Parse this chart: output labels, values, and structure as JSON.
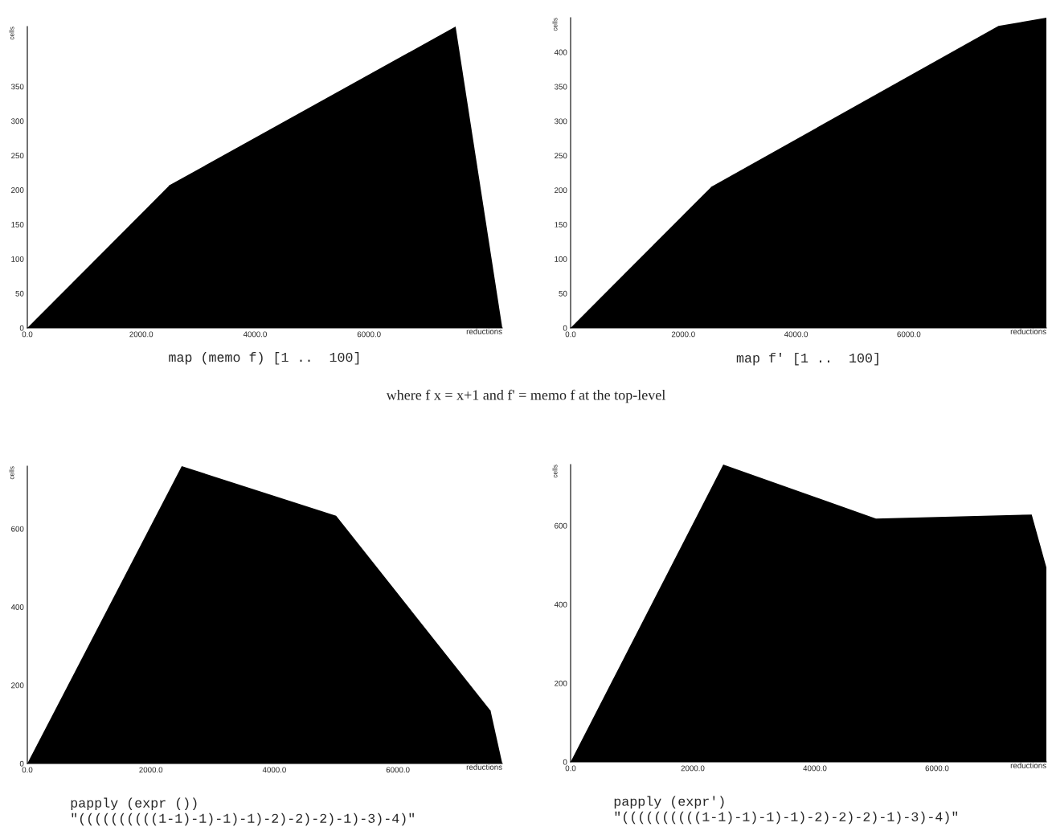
{
  "chart_data": [
    {
      "type": "area",
      "title": "map (memo f) [1 ..  100]",
      "xlabel": "reductions",
      "ylabel": "cells",
      "annotations": [
        "where f x = x+1 and f' = memo f at the top-level"
      ],
      "x": [
        0,
        2500,
        7520,
        8340
      ],
      "values": [
        0,
        207,
        437,
        0
      ],
      "color": "#000000",
      "xlim": [
        0,
        8340
      ],
      "ylim": [
        0,
        437
      ],
      "xticks": [
        {
          "value": 0,
          "label": "0.0"
        },
        {
          "value": 2000,
          "label": "2000.0"
        },
        {
          "value": 4000,
          "label": "4000.0"
        },
        {
          "value": 6000,
          "label": "6000.0"
        }
      ],
      "yticks": [
        0,
        50,
        100,
        150,
        200,
        250,
        300,
        350
      ],
      "grid": false,
      "legend": false
    },
    {
      "type": "area",
      "title": "map f' [1 ..  100]",
      "xlabel": "reductions",
      "ylabel": "cells",
      "x": [
        0,
        2500,
        7590,
        8440
      ],
      "values": [
        0,
        205,
        438,
        450
      ],
      "color": "#000000",
      "xlim": [
        0,
        8440
      ],
      "ylim": [
        0,
        450
      ],
      "xticks": [
        {
          "value": 0,
          "label": "0.0"
        },
        {
          "value": 2000,
          "label": "2000.0"
        },
        {
          "value": 4000,
          "label": "4000.0"
        },
        {
          "value": 6000,
          "label": "6000.0"
        }
      ],
      "yticks": [
        0,
        50,
        100,
        150,
        200,
        250,
        300,
        350,
        400
      ],
      "grid": false,
      "legend": false
    },
    {
      "type": "area",
      "title": "papply (expr ())\n\"((((((((((1-1)-1)-1)-1)-2)-2)-2)-1)-3)-4)\"",
      "xlabel": "reductions",
      "ylabel": "cells",
      "x": [
        0,
        2500,
        5000,
        7500,
        7690
      ],
      "values": [
        0,
        760,
        633,
        135,
        0
      ],
      "color": "#000000",
      "xlim": [
        0,
        7690
      ],
      "ylim": [
        0,
        760
      ],
      "xticks": [
        {
          "value": 0,
          "label": "0.0"
        },
        {
          "value": 2000,
          "label": "2000.0"
        },
        {
          "value": 4000,
          "label": "4000.0"
        },
        {
          "value": 6000,
          "label": "6000.0"
        }
      ],
      "yticks": [
        0,
        200,
        400,
        600
      ],
      "grid": false,
      "legend": false
    },
    {
      "type": "area",
      "title": "papply (expr')\n\"((((((((((1-1)-1)-1)-1)-2)-2)-2)-1)-3)-4)\"",
      "xlabel": "reductions",
      "ylabel": "cells",
      "x": [
        0,
        2500,
        5000,
        7550,
        7790
      ],
      "values": [
        0,
        755,
        618,
        628,
        494
      ],
      "color": "#000000",
      "xlim": [
        0,
        7790
      ],
      "ylim": [
        0,
        755
      ],
      "xticks": [
        {
          "value": 0,
          "label": "0.0"
        },
        {
          "value": 2000,
          "label": "2000.0"
        },
        {
          "value": 4000,
          "label": "4000.0"
        },
        {
          "value": 6000,
          "label": "6000.0"
        }
      ],
      "yticks": [
        0,
        200,
        400,
        600
      ],
      "grid": false,
      "legend": false
    }
  ]
}
